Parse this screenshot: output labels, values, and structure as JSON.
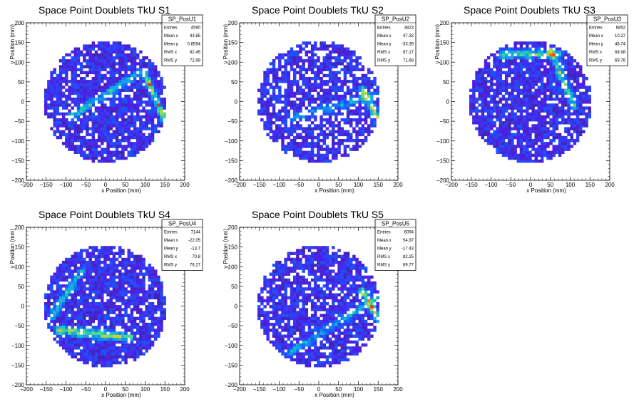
{
  "chart_data": [
    {
      "type": "heatmap",
      "title": "Space Point Doublets TkU S1",
      "xlabel": "x Position (mm)",
      "ylabel": "y Position (mm)",
      "xlim": [
        -200,
        200
      ],
      "ylim": [
        -200,
        200
      ],
      "xticks": [
        "−200",
        "−150",
        "−100",
        "−50",
        "0",
        "50",
        "100",
        "150",
        "200"
      ],
      "yticks": [
        "−200",
        "−150",
        "−100",
        "−50",
        "0",
        "50",
        "100",
        "150",
        "200"
      ],
      "stats": {
        "name": "SP_PosU1",
        "rows": [
          {
            "label": "Entries",
            "value": "4590"
          },
          {
            "label": "Mean x",
            "value": "43.85"
          },
          {
            "label": "Mean y",
            "value": "0.8594"
          },
          {
            "label": "RMS x",
            "value": "82.45"
          },
          {
            "label": "RMS y",
            "value": "72.99"
          }
        ]
      },
      "data_radius": 155,
      "fill": 0.82,
      "features": [
        {
          "kind": "band",
          "x1": -90,
          "y1": -40,
          "x2": 90,
          "y2": 75,
          "width": 14,
          "strength": 0.45
        },
        {
          "kind": "band",
          "x1": 100,
          "y1": 70,
          "x2": 155,
          "y2": -60,
          "width": 12,
          "strength": 0.75
        }
      ]
    },
    {
      "type": "heatmap",
      "title": "Space Point Doublets TkU S2",
      "xlabel": "x Position (mm)",
      "ylabel": "y Position (mm)",
      "xlim": [
        -200,
        200
      ],
      "ylim": [
        -200,
        200
      ],
      "xticks": [
        "−200",
        "−150",
        "−100",
        "−50",
        "0",
        "50",
        "100",
        "150",
        "200"
      ],
      "yticks": [
        "−200",
        "−150",
        "−100",
        "−50",
        "0",
        "50",
        "100",
        "150",
        "200"
      ],
      "stats": {
        "name": "SP_PosU2",
        "rows": [
          {
            "label": "Entries",
            "value": "3823"
          },
          {
            "label": "Mean x",
            "value": "47.32"
          },
          {
            "label": "Mean y",
            "value": "-33.39"
          },
          {
            "label": "RMS x",
            "value": "87.17"
          },
          {
            "label": "RMS y",
            "value": "71.68"
          }
        ]
      },
      "data_radius": 155,
      "fill": 0.72,
      "features": [
        {
          "kind": "band",
          "x1": -60,
          "y1": -40,
          "x2": 150,
          "y2": 20,
          "width": 14,
          "strength": 0.3
        },
        {
          "kind": "band",
          "x1": 110,
          "y1": 30,
          "x2": 160,
          "y2": -60,
          "width": 16,
          "strength": 0.6
        }
      ]
    },
    {
      "type": "heatmap",
      "title": "Space Point Doublets TkU S3",
      "xlabel": "x Position (mm)",
      "ylabel": "y Position (mm)",
      "xlim": [
        -200,
        200
      ],
      "ylim": [
        -200,
        200
      ],
      "xticks": [
        "−200",
        "−150",
        "−100",
        "−50",
        "0",
        "50",
        "100",
        "150",
        "200"
      ],
      "yticks": [
        "−200",
        "−150",
        "−100",
        "−50",
        "0",
        "50",
        "100",
        "150",
        "200"
      ],
      "stats": {
        "name": "SP_PosU3",
        "rows": [
          {
            "label": "Entries",
            "value": "6852"
          },
          {
            "label": "Mean x",
            "value": "10.27"
          },
          {
            "label": "Mean y",
            "value": "46.74"
          },
          {
            "label": "RMS x",
            "value": "68.98"
          },
          {
            "label": "RMS y",
            "value": "69.76"
          }
        ]
      },
      "data_radius": 155,
      "fill": 0.85,
      "features": [
        {
          "kind": "band",
          "x1": -70,
          "y1": 120,
          "x2": 70,
          "y2": 120,
          "width": 16,
          "strength": 0.55
        },
        {
          "kind": "band",
          "x1": 50,
          "y1": 130,
          "x2": 110,
          "y2": -10,
          "width": 14,
          "strength": 0.5
        }
      ]
    },
    {
      "type": "heatmap",
      "title": "Space Point Doublets TkU S4",
      "xlabel": "x Position (mm)",
      "ylabel": "y Position (mm)",
      "xlim": [
        -200,
        200
      ],
      "ylim": [
        -200,
        200
      ],
      "xticks": [
        "−200",
        "−150",
        "−100",
        "−50",
        "0",
        "50",
        "100",
        "150",
        "200"
      ],
      "yticks": [
        "−200",
        "−150",
        "−100",
        "−50",
        "0",
        "50",
        "100",
        "150",
        "200"
      ],
      "stats": {
        "name": "SP_PosU4",
        "rows": [
          {
            "label": "Entries",
            "value": "7144"
          },
          {
            "label": "Mean x",
            "value": "-22.05"
          },
          {
            "label": "Mean y",
            "value": "-13.7"
          },
          {
            "label": "RMS x",
            "value": "70.8"
          },
          {
            "label": "RMS y",
            "value": "76.27"
          }
        ]
      },
      "data_radius": 155,
      "fill": 0.88,
      "features": [
        {
          "kind": "band",
          "x1": -120,
          "y1": -60,
          "x2": 60,
          "y2": -80,
          "width": 16,
          "strength": 0.65
        },
        {
          "kind": "band",
          "x1": -140,
          "y1": -30,
          "x2": -60,
          "y2": 90,
          "width": 14,
          "strength": 0.4
        }
      ]
    },
    {
      "type": "heatmap",
      "title": "Space Point Doublets TkU S5",
      "xlabel": "x Position (mm)",
      "ylabel": "y Position (mm)",
      "xlim": [
        -200,
        200
      ],
      "ylim": [
        -200,
        200
      ],
      "xticks": [
        "−200",
        "−150",
        "−100",
        "−50",
        "0",
        "50",
        "100",
        "150",
        "200"
      ],
      "yticks": [
        "−200",
        "−150",
        "−100",
        "−50",
        "0",
        "50",
        "100",
        "150",
        "200"
      ],
      "stats": {
        "name": "SP_PosU5",
        "rows": [
          {
            "label": "Entries",
            "value": "6094"
          },
          {
            "label": "Mean x",
            "value": "54.97"
          },
          {
            "label": "Mean y",
            "value": "-17.43"
          },
          {
            "label": "RMS x",
            "value": "82.25"
          },
          {
            "label": "RMS y",
            "value": "69.77"
          }
        ]
      },
      "data_radius": 155,
      "fill": 0.8,
      "features": [
        {
          "kind": "band",
          "x1": -80,
          "y1": -120,
          "x2": 150,
          "y2": 20,
          "width": 16,
          "strength": 0.3
        },
        {
          "kind": "band",
          "x1": 110,
          "y1": 40,
          "x2": 160,
          "y2": -50,
          "width": 12,
          "strength": 0.75
        }
      ]
    }
  ]
}
